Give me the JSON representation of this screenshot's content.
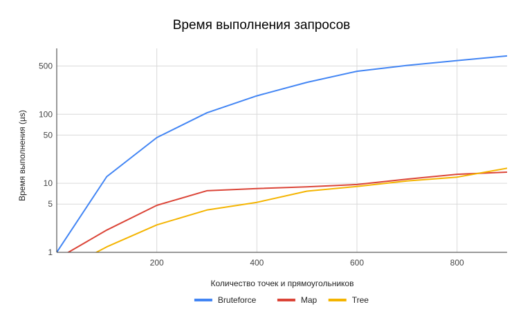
{
  "chart_data": {
    "type": "line",
    "title": "Время выполнения запросов",
    "xlabel": "Количество точек и прямоугольников",
    "ylabel": "Время выполнения (µs)",
    "xlim": [
      0,
      900
    ],
    "ylim": [
      1,
      900
    ],
    "yscale": "log",
    "xticks": [
      200,
      400,
      600,
      800
    ],
    "yticks": [
      1,
      5,
      10,
      50,
      100,
      500
    ],
    "grid": true,
    "legend_position": "bottom",
    "series": [
      {
        "name": "Bruteforce",
        "color": "#4285f4",
        "x": [
          0,
          100,
          200,
          300,
          400,
          500,
          600,
          700,
          800,
          900
        ],
        "values": [
          1,
          12.5,
          46,
          105,
          185,
          290,
          420,
          510,
          600,
          700
        ]
      },
      {
        "name": "Map",
        "color": "#db4437",
        "x": [
          0,
          100,
          200,
          300,
          400,
          500,
          600,
          700,
          800,
          900
        ],
        "values": [
          0.8,
          2.1,
          4.8,
          7.8,
          8.4,
          8.9,
          9.6,
          11.5,
          13.5,
          14.5
        ]
      },
      {
        "name": "Tree",
        "color": "#f4b400",
        "x": [
          0,
          100,
          200,
          300,
          400,
          500,
          600,
          700,
          800,
          900
        ],
        "values": [
          0.5,
          1.2,
          2.5,
          4.1,
          5.3,
          7.7,
          9.0,
          10.8,
          12.3,
          16.5
        ]
      }
    ]
  }
}
